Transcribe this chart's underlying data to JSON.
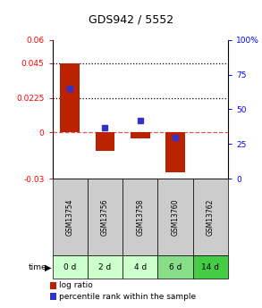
{
  "title": "GDS942 / 5552",
  "categories": [
    "GSM13754",
    "GSM13756",
    "GSM13758",
    "GSM13760",
    "GSM13762"
  ],
  "time_labels": [
    "0 d",
    "2 d",
    "4 d",
    "6 d",
    "14 d"
  ],
  "log_ratios": [
    0.045,
    -0.012,
    -0.004,
    -0.026,
    0.0
  ],
  "percentile_ranks": [
    65.0,
    37.0,
    42.0,
    30.0,
    null
  ],
  "ylim_left": [
    -0.03,
    0.06
  ],
  "ylim_right": [
    0,
    100
  ],
  "yticks_left": [
    -0.03,
    0,
    0.0225,
    0.045,
    0.06
  ],
  "ytick_left_labels": [
    "-0.03",
    "0",
    "0.0225",
    "0.045",
    "0.06"
  ],
  "yticks_right": [
    0,
    25,
    50,
    75,
    100
  ],
  "ytick_right_labels": [
    "0",
    "25",
    "50",
    "75",
    "100%"
  ],
  "hlines_dotted": [
    0.045,
    0.0225
  ],
  "bar_color": "#bb2200",
  "dot_color": "#3333cc",
  "zero_line_color": "#cc3333",
  "bar_width": 0.55,
  "bg_color": "#ffffff",
  "plot_bg": "#ffffff",
  "time_row_colors": [
    "#ccffcc",
    "#ccffcc",
    "#ccffcc",
    "#88dd88",
    "#44cc44"
  ],
  "gsm_row_color": "#cccccc",
  "legend_labels": [
    "log ratio",
    "percentile rank within the sample"
  ],
  "title_fontsize": 9
}
